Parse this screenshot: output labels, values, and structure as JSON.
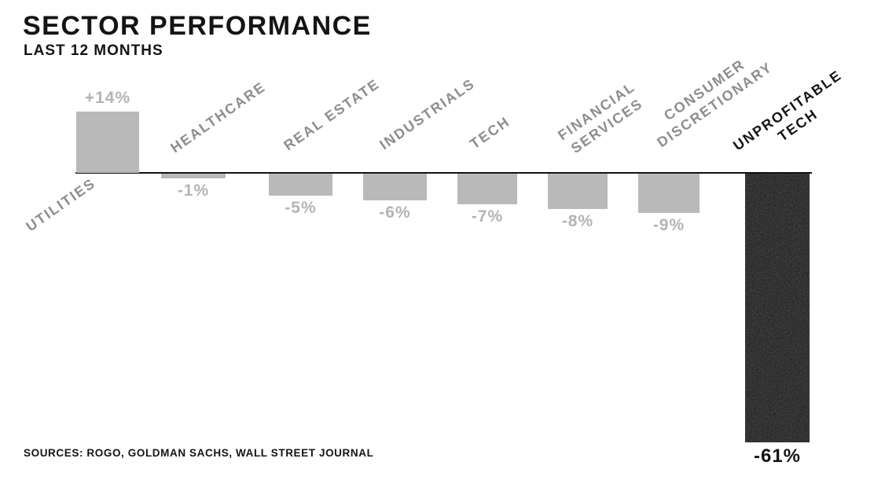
{
  "header": {
    "title": "SECTOR PERFORMANCE",
    "subtitle": "LAST 12 MONTHS"
  },
  "footer": {
    "source_note": "SOURCES: ROGO, GOLDMAN SACHS, WALL STREET JOURNAL"
  },
  "colors": {
    "background": "#ffffff",
    "ink_black": "#141414",
    "bar_gray": "#b9b9b9",
    "value_label_gray": "#b4b4b4",
    "sector_label_gray": "#8d8d8d",
    "highlight_bar_black": "#1d1d1d",
    "axis_black": "#131313"
  },
  "chart_data": {
    "type": "bar",
    "title": "SECTOR PERFORMANCE",
    "subtitle": "LAST 12 MONTHS",
    "unit": "%",
    "ylabel": "",
    "xlabel": "",
    "ylim": [
      -61,
      14
    ],
    "grid": false,
    "baseline": "zero",
    "legend": "none",
    "highlighted_category": "UNPROFITABLE TECH",
    "categories": [
      "UTILITIES",
      "HEALTHCARE",
      "REAL ESTATE",
      "INDUSTRIALS",
      "TECH",
      "FINANCIAL SERVICES",
      "CONSUMER DISCRETIONARY",
      "UNPROFITABLE TECH"
    ],
    "values": [
      14,
      -1,
      -5,
      -6,
      -7,
      -8,
      -9,
      -61
    ],
    "bars": [
      {
        "sector": "UTILITIES",
        "label_lines": [
          "UTILITIES"
        ],
        "value": 14,
        "value_label": "+14%",
        "highlight": false
      },
      {
        "sector": "HEALTHCARE",
        "label_lines": [
          "HEALTHCARE"
        ],
        "value": -1,
        "value_label": "-1%",
        "highlight": false
      },
      {
        "sector": "REAL ESTATE",
        "label_lines": [
          "REAL ESTATE"
        ],
        "value": -5,
        "value_label": "-5%",
        "highlight": false
      },
      {
        "sector": "INDUSTRIALS",
        "label_lines": [
          "INDUSTRIALS"
        ],
        "value": -6,
        "value_label": "-6%",
        "highlight": false
      },
      {
        "sector": "TECH",
        "label_lines": [
          "TECH"
        ],
        "value": -7,
        "value_label": "-7%",
        "highlight": false
      },
      {
        "sector": "FINANCIAL SERVICES",
        "label_lines": [
          "FINANCIAL",
          "SERVICES"
        ],
        "value": -8,
        "value_label": "-8%",
        "highlight": false
      },
      {
        "sector": "CONSUMER DISCRETIONARY",
        "label_lines": [
          "CONSUMER",
          "DISCRETIONARY"
        ],
        "value": -9,
        "value_label": "-9%",
        "highlight": false
      },
      {
        "sector": "UNPROFITABLE TECH",
        "label_lines": [
          "UNPROFITABLE",
          "TECH"
        ],
        "value": -61,
        "value_label": "-61%",
        "highlight": true
      }
    ]
  }
}
